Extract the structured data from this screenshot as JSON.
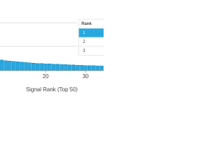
{
  "chart_data": {
    "type": "bar",
    "xlabel": "Signal Rank (Top 50)",
    "x": [
      9,
      10,
      11,
      12,
      13,
      14,
      15,
      16,
      17,
      18,
      19,
      20,
      21,
      22,
      23,
      24,
      25,
      26,
      27,
      28,
      29,
      30,
      31,
      32,
      33,
      34,
      35
    ],
    "values": [
      15,
      14,
      13.5,
      13,
      12.5,
      12,
      11.5,
      11,
      10.5,
      10,
      10,
      9.5,
      9.5,
      9,
      9,
      8.5,
      8.5,
      8,
      8,
      7.5,
      7.5,
      7,
      7,
      7,
      6.5,
      6.5,
      6
    ],
    "color": "#29a8e0",
    "xlim": [
      8.6,
      34.5
    ],
    "xticks": [
      20,
      30
    ],
    "ylim": [
      0,
      100
    ],
    "table": {
      "header": "Rank",
      "rows": [
        "1",
        "2",
        "3"
      ],
      "highlight_color": "#29a8e0"
    }
  }
}
